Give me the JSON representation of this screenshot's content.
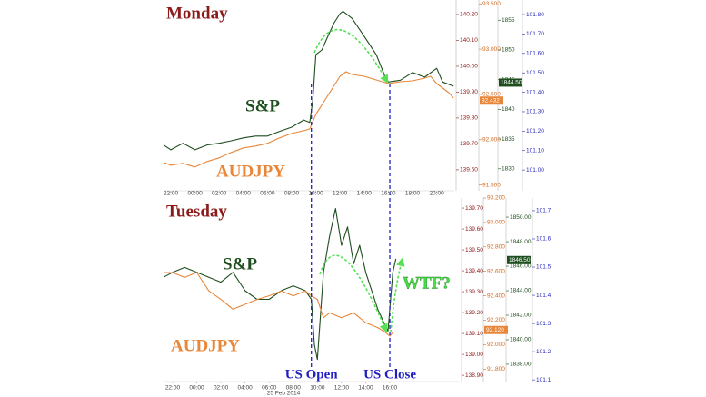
{
  "chart_data": [
    {
      "type": "line",
      "title": "Monday",
      "xlim": [
        -2.6,
        21.46
      ],
      "xticks": [
        {
          "value": -2,
          "label": "22:00"
        },
        {
          "value": 0,
          "label": "00:00"
        },
        {
          "value": 2,
          "label": "02:00"
        },
        {
          "value": 4,
          "label": "04:00"
        },
        {
          "value": 6,
          "label": "06:00"
        },
        {
          "value": 8,
          "label": "08:00"
        },
        {
          "value": 10,
          "label": "10:00"
        },
        {
          "value": 12,
          "label": "12:00"
        },
        {
          "value": 14,
          "label": "14:00"
        },
        {
          "value": 16,
          "label": "16:00"
        },
        {
          "value": 18,
          "label": "18:00"
        },
        {
          "value": 20,
          "label": "20:00"
        }
      ],
      "axes": [
        {
          "color": "#8b1a1a",
          "ylim": [
            139.519,
            140.256
          ],
          "yticks": [
            {
              "value": 139.6,
              "label": "139.60"
            },
            {
              "value": 139.7,
              "label": "139.70"
            },
            {
              "value": 139.8,
              "label": "139.80"
            },
            {
              "value": 139.9,
              "label": "139.90"
            },
            {
              "value": 140,
              "label": "140.00"
            },
            {
              "value": 140.1,
              "label": "140.10"
            },
            {
              "value": 140.2,
              "label": "140.20"
            }
          ]
        },
        {
          "color": "#d2691e",
          "ylim": [
            91.437,
            93.542
          ],
          "yticks": [
            {
              "value": 91.5,
              "label": "91.500"
            },
            {
              "value": 92,
              "label": "92.000"
            },
            {
              "value": 92.5,
              "label": "92.500"
            },
            {
              "value": 93,
              "label": "93.000"
            },
            {
              "value": 93.5,
              "label": "93.500"
            }
          ]
        },
        {
          "color": "#1e4d1e",
          "ylim": [
            1826.3,
            1858.4
          ],
          "yticks": [
            1830,
            1835,
            1840,
            1845,
            1850,
            1855
          ]
        },
        {
          "color": "#2b2bb8",
          "ylim": [
            100.893,
            101.875
          ],
          "yticks": [
            {
              "value": 101,
              "label": "101.00"
            },
            {
              "value": 101.1,
              "label": "101.10"
            },
            {
              "value": 101.2,
              "label": "101.20"
            },
            {
              "value": 101.3,
              "label": "101.30"
            },
            {
              "value": 101.4,
              "label": "101.40"
            },
            {
              "value": 101.5,
              "label": "101.50"
            },
            {
              "value": 101.6,
              "label": "101.60"
            },
            {
              "value": 101.7,
              "label": "101.70"
            },
            {
              "value": 101.8,
              "label": "101.80"
            }
          ]
        }
      ],
      "series": [
        {
          "name": "S&P",
          "color": "#1e4d1e",
          "axis": 2,
          "x": [
            -2.6,
            -2,
            -1,
            0,
            1,
            2,
            3,
            4,
            5,
            6,
            7,
            8,
            9,
            9.5,
            9.75,
            10,
            10.5,
            11,
            11.5,
            12,
            12.25,
            13,
            14,
            15,
            15.75,
            16,
            17,
            18,
            19,
            20,
            20.5,
            21.4
          ],
          "values": [
            1834.0,
            1833.2,
            1834.3,
            1833.2,
            1834.0,
            1834.3,
            1834.7,
            1835.2,
            1835.5,
            1835.5,
            1836.3,
            1837.0,
            1838.2,
            1837.8,
            1841.6,
            1849.2,
            1850.0,
            1852.3,
            1854.5,
            1856.1,
            1856.5,
            1855.3,
            1852.3,
            1849.2,
            1845.4,
            1844.6,
            1844.9,
            1846.2,
            1845.4,
            1846.9,
            1844.6,
            1843.9
          ],
          "last_value": 1844.5,
          "last_value_label": "1844.50"
        },
        {
          "name": "AUDJPY",
          "color": "#e8873a",
          "axis": 1,
          "x": [
            -2.6,
            -2,
            -1,
            0,
            1,
            2,
            3,
            4,
            5,
            6,
            7,
            8,
            9,
            9.5,
            10,
            11,
            12,
            12.5,
            13,
            14,
            15,
            16,
            17,
            18,
            19,
            19.5,
            20,
            21,
            21.4
          ],
          "values": [
            91.75,
            91.72,
            91.74,
            91.7,
            91.76,
            91.8,
            91.86,
            91.91,
            91.93,
            91.96,
            92.02,
            92.07,
            92.1,
            92.12,
            92.28,
            92.49,
            92.7,
            92.75,
            92.72,
            92.7,
            92.66,
            92.62,
            92.64,
            92.65,
            92.68,
            92.7,
            92.62,
            92.52,
            92.46
          ],
          "last_value": 92.432,
          "last_value_label": "92.432"
        }
      ]
    },
    {
      "type": "line",
      "title": "Tuesday",
      "x_date_label": "25 Feb 2014",
      "xlim": [
        -2.75,
        21.72
      ],
      "xticks": [
        {
          "value": -2,
          "label": "22:00"
        },
        {
          "value": 0,
          "label": "00:00"
        },
        {
          "value": 2,
          "label": "02:00"
        },
        {
          "value": 4,
          "label": "04:00"
        },
        {
          "value": 6,
          "label": "06:00"
        },
        {
          "value": 8,
          "label": "08:00"
        },
        {
          "value": 10,
          "label": "10:00"
        },
        {
          "value": 12,
          "label": "12:00"
        },
        {
          "value": 14,
          "label": "14:00"
        },
        {
          "value": 16,
          "label": "16:00"
        }
      ],
      "axes": [
        {
          "color": "#8b1a1a",
          "ylim": [
            138.87,
            139.748
          ],
          "yticks": [
            {
              "value": 138.9,
              "label": "138.90"
            },
            {
              "value": 139,
              "label": "139.00"
            },
            {
              "value": 139.1,
              "label": "139.10"
            },
            {
              "value": 139.2,
              "label": "139.20"
            },
            {
              "value": 139.3,
              "label": "139.30"
            },
            {
              "value": 139.4,
              "label": "139.40"
            },
            {
              "value": 139.5,
              "label": "139.50"
            },
            {
              "value": 139.6,
              "label": "139.60"
            },
            {
              "value": 139.7,
              "label": "139.70"
            }
          ]
        },
        {
          "color": "#d2691e",
          "ylim": [
            91.698,
            93.2
          ],
          "yticks": [
            {
              "value": 91.8,
              "label": "91.800"
            },
            {
              "value": 92,
              "label": "92.000"
            },
            {
              "value": 92.2,
              "label": "92.200"
            },
            {
              "value": 92.4,
              "label": "92.400"
            },
            {
              "value": 92.6,
              "label": "92.600"
            },
            {
              "value": 92.8,
              "label": "92.800"
            },
            {
              "value": 93,
              "label": "93.000"
            },
            {
              "value": 93.2,
              "label": "93.200"
            }
          ]
        },
        {
          "color": "#1e4d1e",
          "ylim": [
            1836.59,
            1851.56
          ],
          "yticks": [
            {
              "value": 1838,
              "label": "1838.00"
            },
            {
              "value": 1840,
              "label": "1840.00"
            },
            {
              "value": 1842,
              "label": "1842.00"
            },
            {
              "value": 1844,
              "label": "1844.00"
            },
            {
              "value": 1846,
              "label": "1846.00"
            },
            {
              "value": 1848,
              "label": "1848.00"
            },
            {
              "value": 1850,
              "label": "1850.00"
            }
          ]
        },
        {
          "color": "#2b2bb8",
          "ylim": [
            101.094,
            101.745
          ],
          "yticks": [
            101.1,
            101.2,
            101.3,
            101.4,
            101.5,
            101.6,
            101.7
          ]
        }
      ],
      "series": [
        {
          "name": "S&P",
          "color": "#1e4d1e",
          "axis": 2,
          "x": [
            -2.75,
            -2,
            -1,
            0,
            1,
            2,
            3,
            4,
            5,
            6,
            7,
            8,
            9,
            9.5,
            9.75,
            10,
            10.5,
            11,
            11.5,
            12,
            12.5,
            13,
            13.5,
            14,
            14.5,
            15,
            15.5,
            15.85,
            16,
            16.25,
            16.5
          ],
          "values": [
            1845.1,
            1845.5,
            1845.9,
            1845.5,
            1845.1,
            1844.7,
            1845.5,
            1844.0,
            1843.3,
            1843.3,
            1844.0,
            1844.4,
            1844.0,
            1843.3,
            1839.6,
            1838.4,
            1845.5,
            1848.4,
            1850.7,
            1847.7,
            1849.2,
            1846.2,
            1847.7,
            1845.5,
            1844.0,
            1842.5,
            1841.4,
            1840.7,
            1842.5,
            1845.5,
            1846.6
          ],
          "last_value": 1846.5,
          "last_value_label": "1846.50"
        },
        {
          "name": "AUDJPY",
          "color": "#e8873a",
          "axis": 1,
          "x": [
            -2.75,
            -2,
            -1,
            0,
            1,
            2,
            3,
            4,
            5,
            6,
            7,
            8,
            9,
            9.5,
            10,
            10.5,
            11,
            12,
            13,
            14,
            15,
            15.5,
            16,
            16.25
          ],
          "values": [
            92.59,
            92.59,
            92.55,
            92.59,
            92.44,
            92.37,
            92.29,
            92.33,
            92.37,
            92.4,
            92.44,
            92.4,
            92.44,
            92.4,
            92.37,
            92.22,
            92.26,
            92.22,
            92.26,
            92.18,
            92.14,
            92.11,
            92.07,
            92.1
          ],
          "last_value": 92.12,
          "last_value_label": "92.120"
        }
      ],
      "annotations": [
        {
          "text": "US Open",
          "x": 9.5
        },
        {
          "text": "US Close",
          "x": 16
        },
        {
          "text": "WTF?"
        }
      ]
    }
  ]
}
